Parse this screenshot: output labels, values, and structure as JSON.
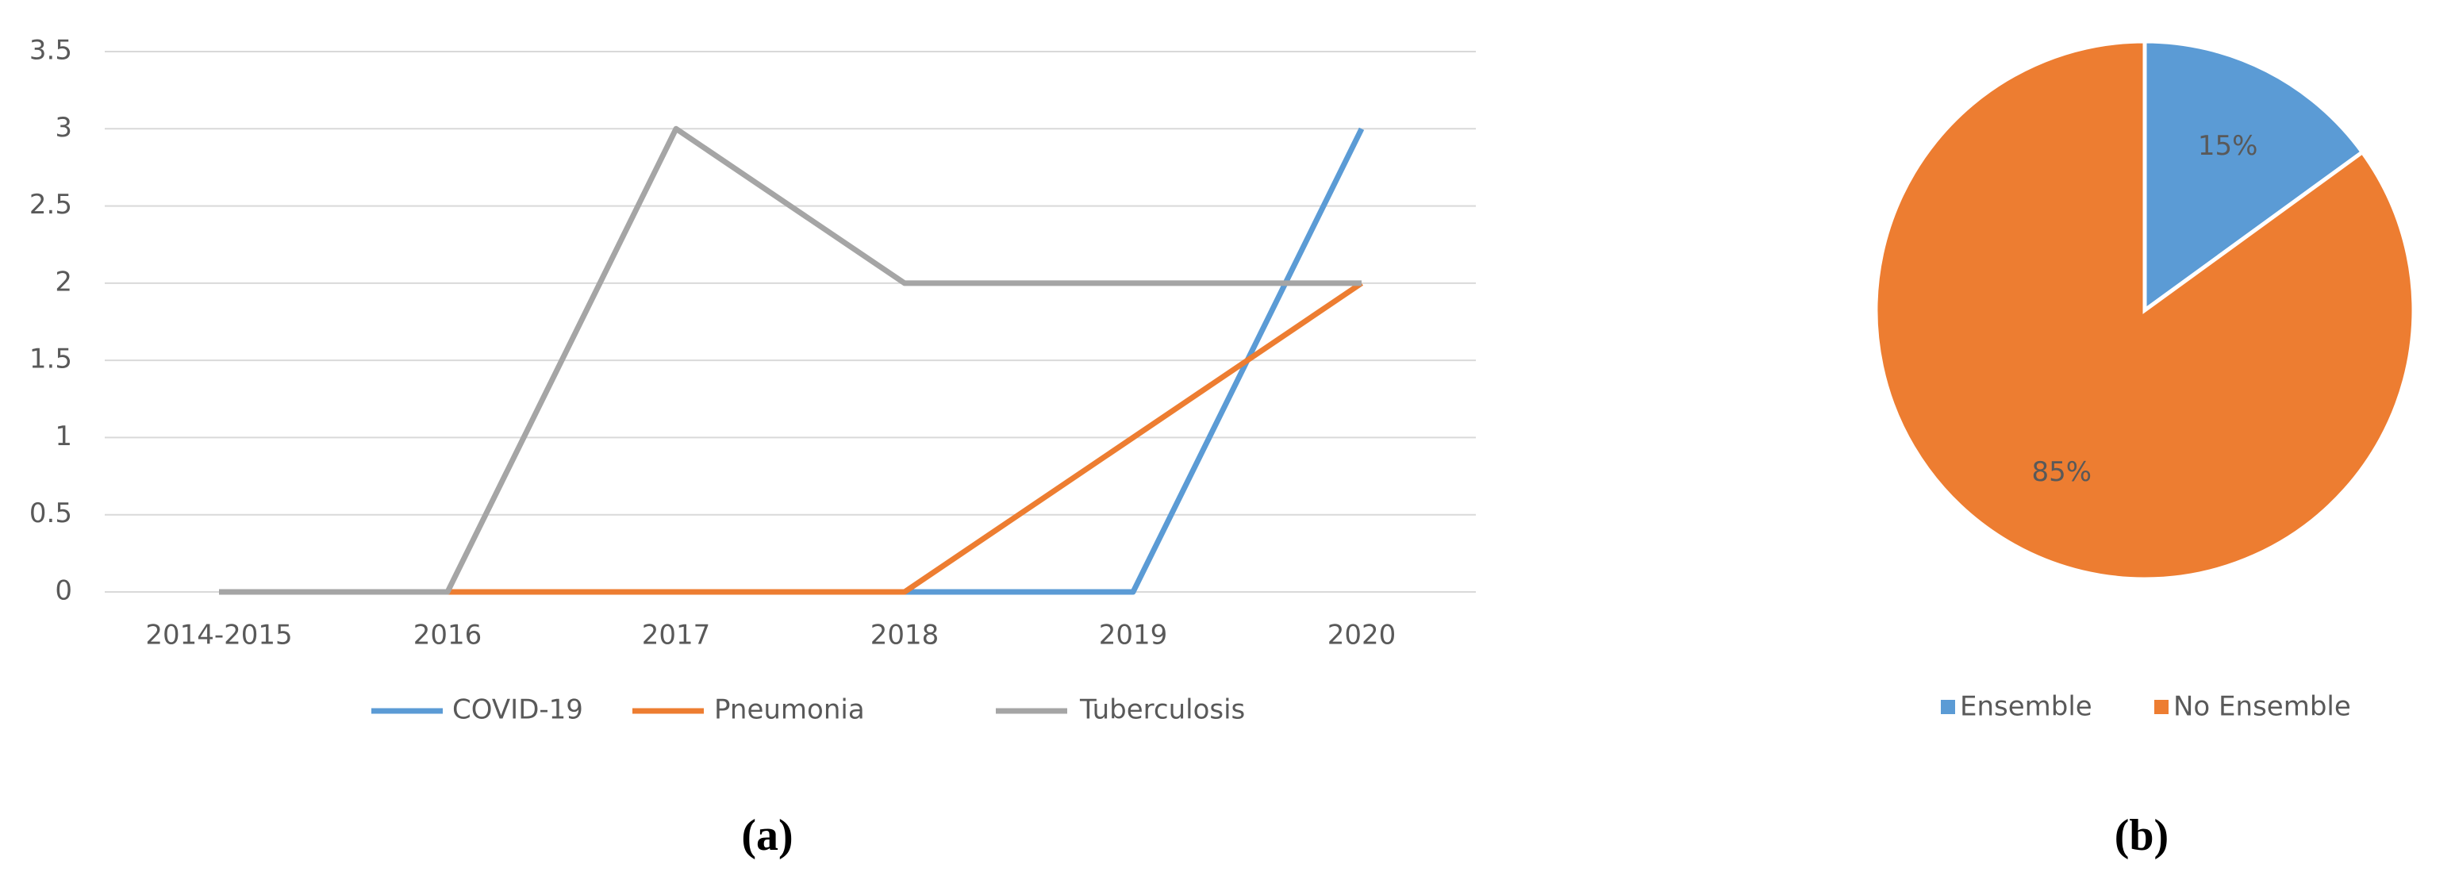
{
  "chart_data": [
    {
      "type": "line",
      "panel_label": "(a)",
      "categories": [
        "2014-2015",
        "2016",
        "2017",
        "2018",
        "2019",
        "2020"
      ],
      "series": [
        {
          "name": "COVID-19",
          "color": "#5b9bd5",
          "values": [
            0,
            0,
            0,
            0,
            0,
            3
          ]
        },
        {
          "name": "Pneumonia",
          "color": "#ed7d31",
          "values": [
            0,
            0,
            0,
            0,
            1,
            2
          ]
        },
        {
          "name": "Tuberculosis",
          "color": "#a5a5a5",
          "values": [
            0,
            0,
            3,
            2,
            2,
            2
          ]
        }
      ],
      "ylim": [
        0,
        3.5
      ],
      "yticks": [
        0,
        0.5,
        1,
        1.5,
        2,
        2.5,
        3,
        3.5
      ],
      "grid": true,
      "legend": "bottom"
    },
    {
      "type": "pie",
      "panel_label": "(b)",
      "categories": [
        "Ensemble",
        "No Ensemble"
      ],
      "values": [
        15,
        85
      ],
      "value_labels": [
        "15%",
        "85%"
      ],
      "colors": [
        "#5b9bd5",
        "#ed7d31"
      ],
      "legend": "bottom"
    }
  ]
}
